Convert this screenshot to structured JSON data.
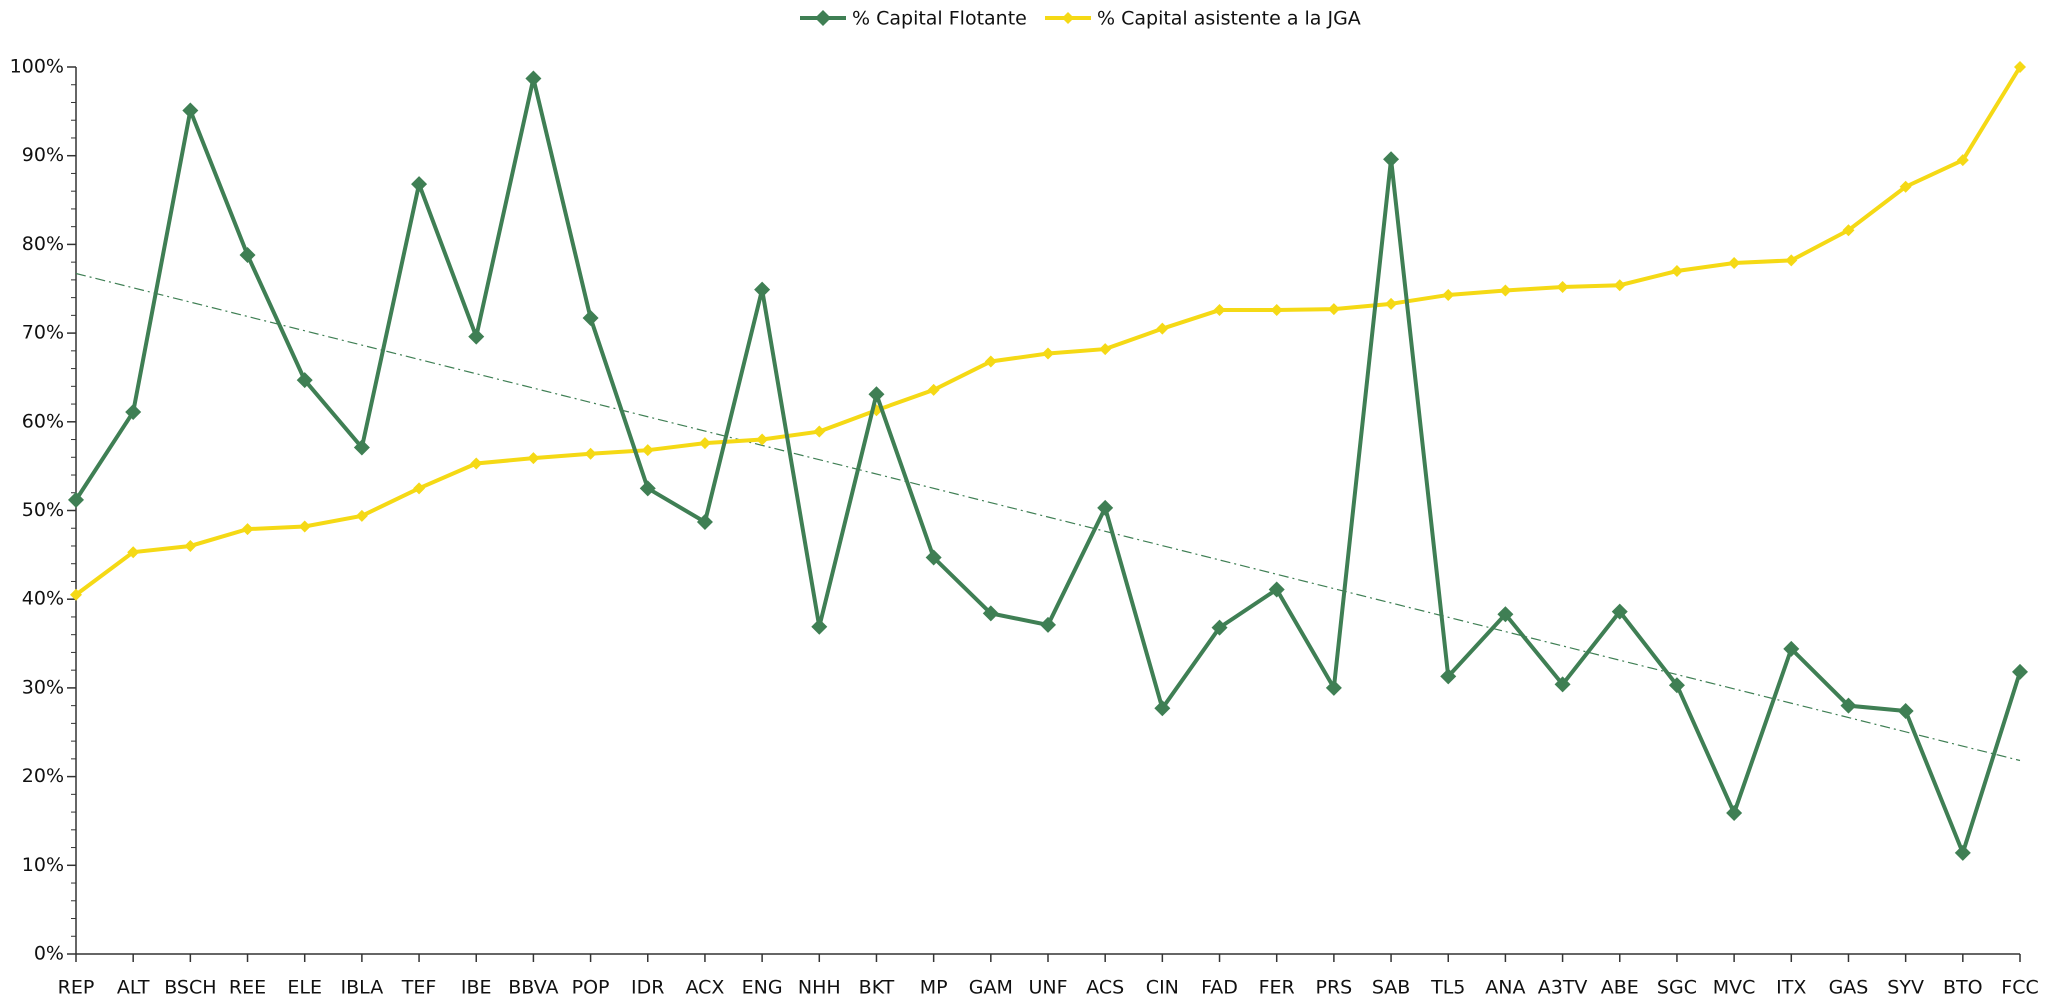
{
  "chart_data": {
    "type": "line",
    "categories": [
      "REP",
      "ALT",
      "BSCH",
      "REE",
      "ELE",
      "IBLA",
      "TEF",
      "IBE",
      "BBVA",
      "POP",
      "IDR",
      "ACX",
      "ENG",
      "NHH",
      "BKT",
      "MP",
      "GAM",
      "UNF",
      "ACS",
      "CIN",
      "FAD",
      "FER",
      "PRS",
      "SAB",
      "TL5",
      "ANA",
      "A3TV",
      "ABE",
      "SGC",
      "MVC",
      "ITX",
      "GAS",
      "SYV",
      "BTO",
      "FCC"
    ],
    "series": [
      {
        "name": "% Capital Flotante",
        "color": "#3f7f54",
        "values": [
          51.2,
          61.1,
          95.1,
          78.8,
          64.7,
          57.1,
          86.8,
          69.6,
          98.7,
          71.7,
          52.5,
          48.7,
          74.9,
          36.9,
          63.1,
          44.7,
          38.4,
          37.1,
          50.3,
          27.7,
          36.8,
          41.1,
          30.0,
          89.6,
          31.3,
          38.3,
          30.4,
          38.6,
          30.3,
          15.9,
          34.4,
          28.0,
          27.4,
          11.4,
          31.8
        ]
      },
      {
        "name": "% Capital asistente a la JGA",
        "color": "#f5d915",
        "values": [
          40.5,
          45.3,
          46.0,
          47.9,
          48.2,
          49.4,
          52.5,
          55.3,
          55.9,
          56.4,
          56.8,
          57.6,
          58.0,
          58.9,
          61.3,
          63.6,
          66.8,
          67.7,
          68.2,
          70.5,
          72.6,
          72.6,
          72.7,
          73.3,
          74.3,
          74.8,
          75.2,
          75.4,
          77.0,
          77.9,
          78.2,
          81.6,
          86.5,
          89.5,
          100
        ]
      }
    ],
    "trendline": true,
    "ylim": [
      0,
      100
    ],
    "yticks": [
      {
        "value": 0,
        "label": "0%"
      },
      {
        "value": 10,
        "label": "10%"
      },
      {
        "value": 20,
        "label": "20%"
      },
      {
        "value": 30,
        "label": "30%"
      },
      {
        "value": 40,
        "label": "40%"
      },
      {
        "value": 50,
        "label": "50%"
      },
      {
        "value": 60,
        "label": "60%"
      },
      {
        "value": 70,
        "label": "70%"
      },
      {
        "value": 80,
        "label": "80%"
      },
      {
        "value": 90,
        "label": "90%"
      },
      {
        "value": 100,
        "label": "100%"
      }
    ],
    "legend": "top"
  }
}
